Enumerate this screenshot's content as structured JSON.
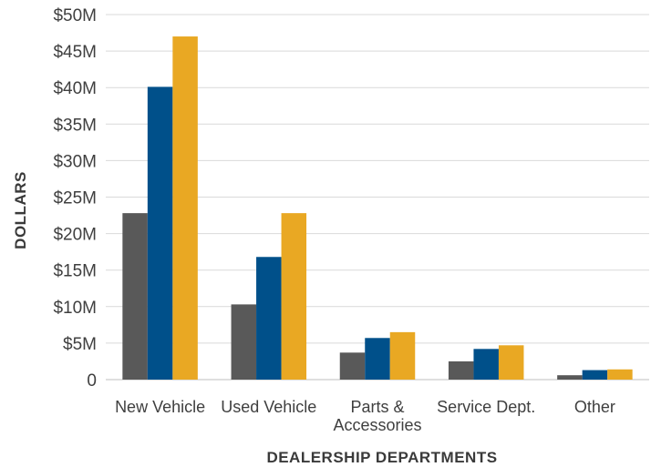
{
  "chart_data": {
    "type": "bar",
    "title": "",
    "xlabel": "DEALERSHIP DEPARTMENTS",
    "ylabel": "DOLLARS",
    "categories": [
      [
        "New Vehicle"
      ],
      [
        "Used Vehicle"
      ],
      [
        "Parts &",
        "Accessories"
      ],
      [
        "Service Dept."
      ],
      [
        "Other"
      ]
    ],
    "series": [
      {
        "color": "#595959",
        "values": [
          22.8,
          10.3,
          3.7,
          2.5,
          0.6
        ]
      },
      {
        "color": "#00508a",
        "values": [
          40.1,
          16.8,
          5.7,
          4.2,
          1.3
        ]
      },
      {
        "color": "#e9a823",
        "values": [
          47.0,
          22.8,
          6.5,
          4.7,
          1.4
        ]
      }
    ],
    "ylim": [
      0,
      50
    ],
    "y_ticks": [
      {
        "value": 0,
        "label": "0"
      },
      {
        "value": 5,
        "label": "$5M"
      },
      {
        "value": 10,
        "label": "$10M"
      },
      {
        "value": 15,
        "label": "$15M"
      },
      {
        "value": 20,
        "label": "$20M"
      },
      {
        "value": 25,
        "label": "$25M"
      },
      {
        "value": 30,
        "label": "$30M"
      },
      {
        "value": 35,
        "label": "$35M"
      },
      {
        "value": 40,
        "label": "$40M"
      },
      {
        "value": 45,
        "label": "$45M"
      },
      {
        "value": 50,
        "label": "$50M"
      }
    ],
    "grid": true,
    "legend": "none"
  }
}
